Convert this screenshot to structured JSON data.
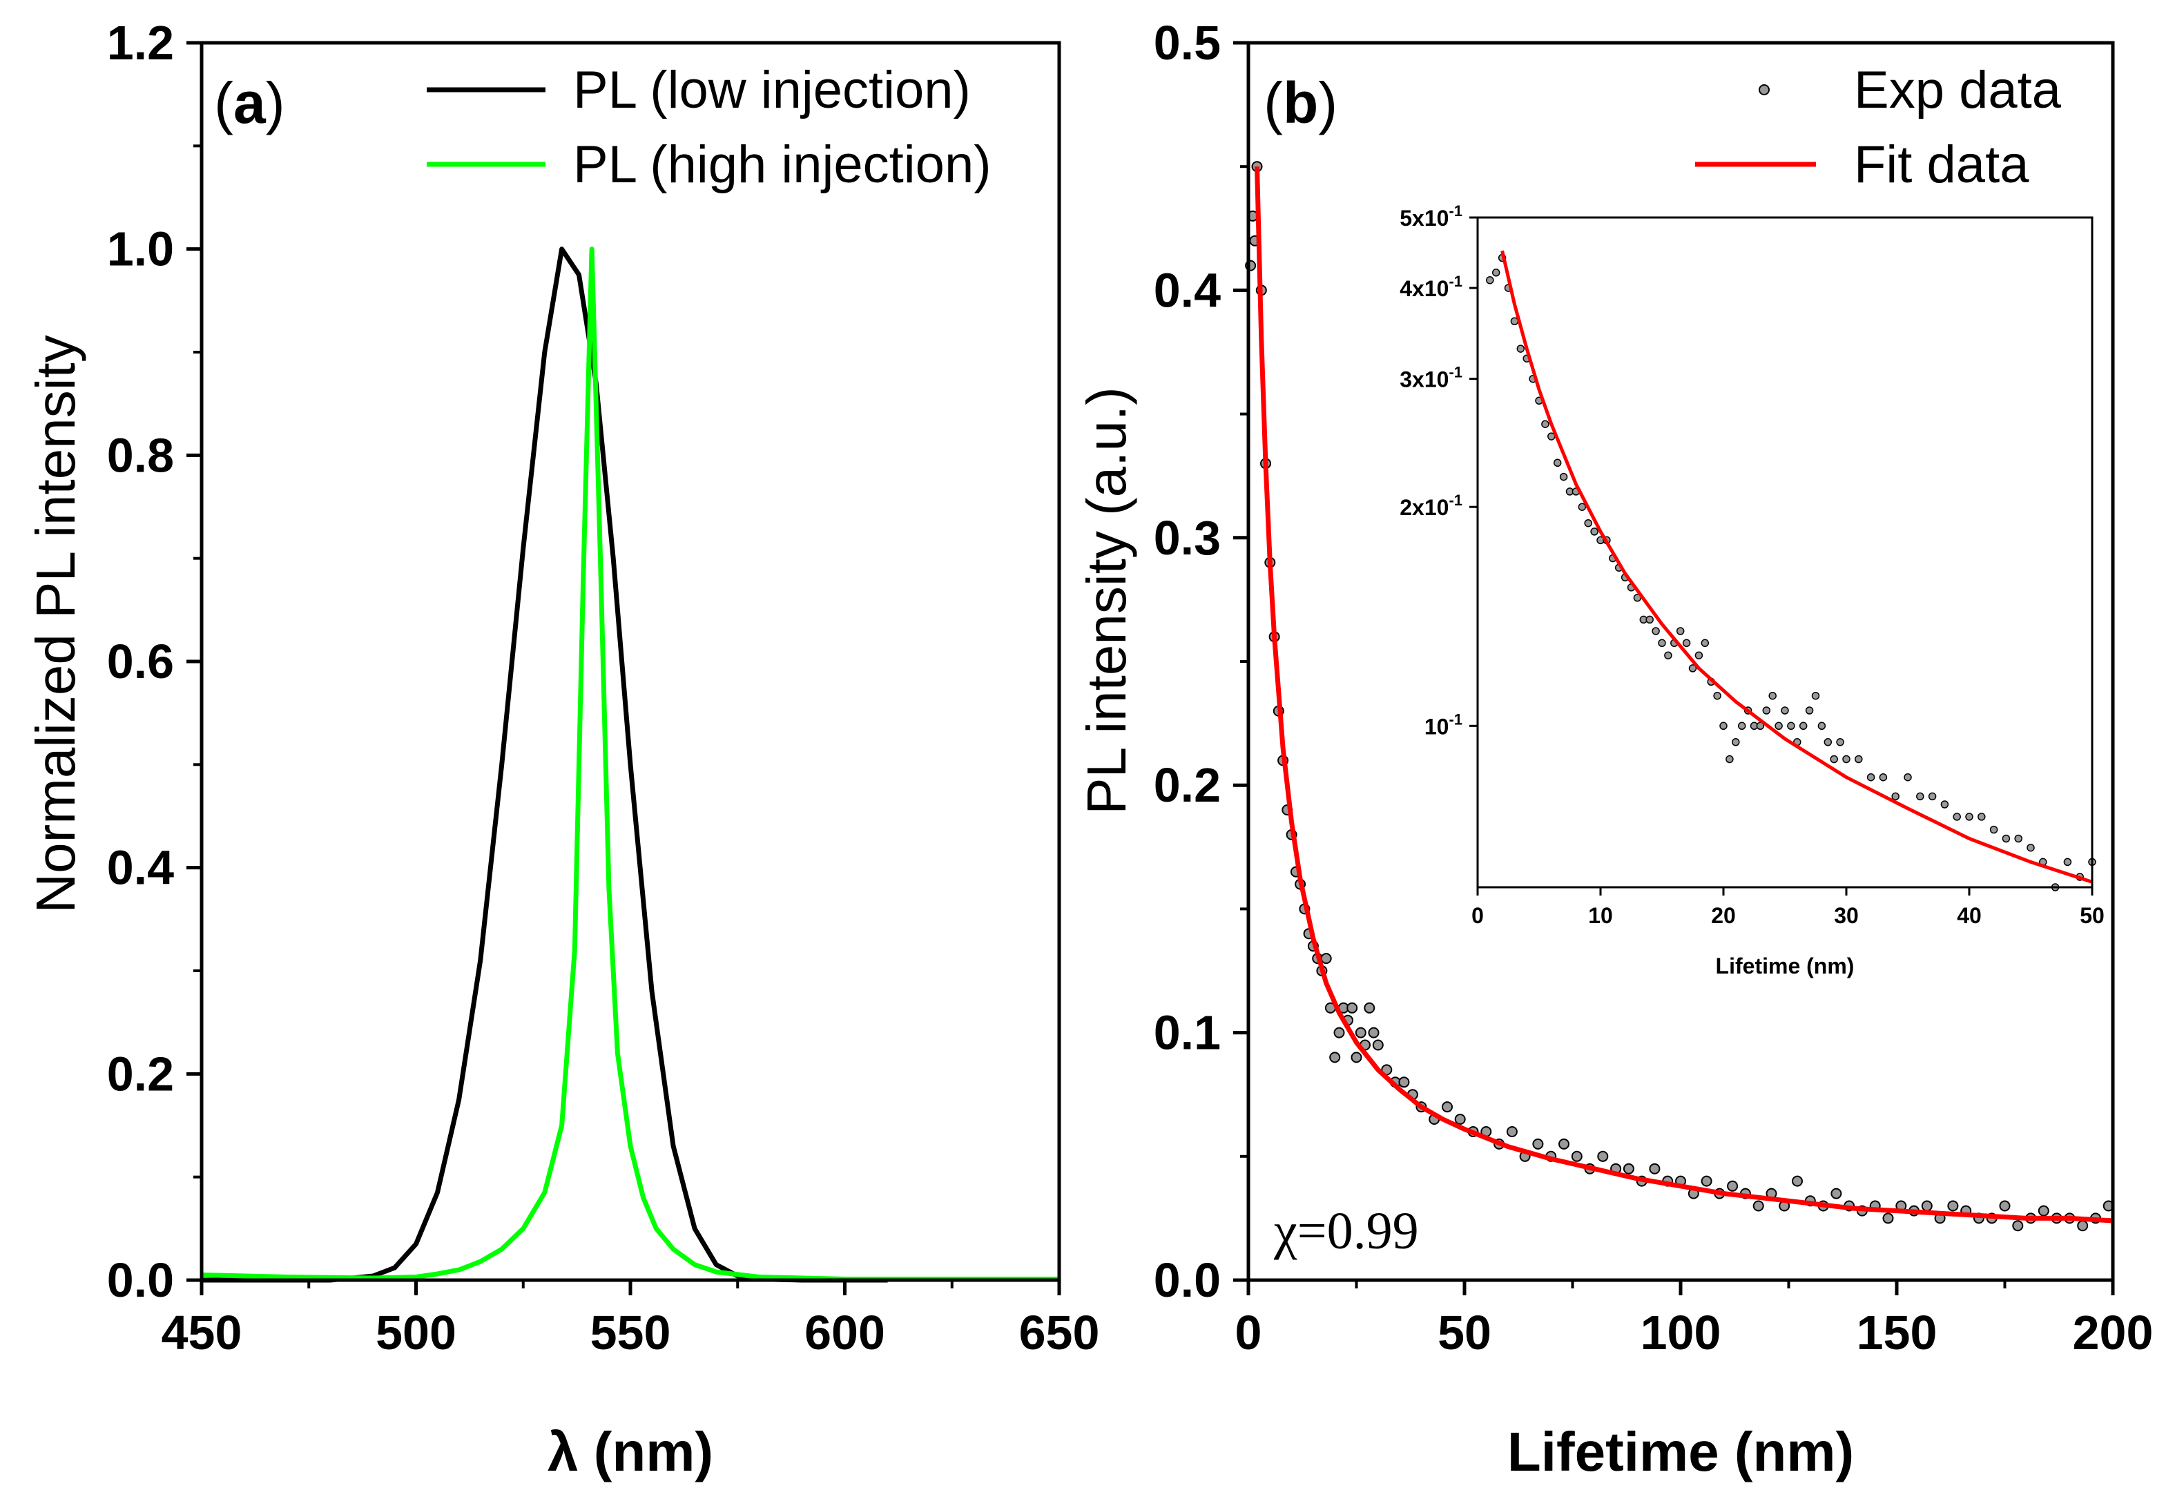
{
  "chart_data": [
    {
      "panel": "a",
      "panel_letter": "a",
      "type": "line",
      "xlabel": "λ (nm)",
      "ylabel": "Normalized  PL intensity",
      "xlim": [
        450,
        650
      ],
      "ylim": [
        0,
        1.2
      ],
      "xticks": [
        "450",
        "500",
        "550",
        "600",
        "650"
      ],
      "yticks": [
        "0.0",
        "0.2",
        "0.4",
        "0.6",
        "0.8",
        "1.0",
        "1.2"
      ],
      "legend_position": "top-right",
      "series": [
        {
          "name": "PL (low injection)",
          "color": "#000000",
          "x": [
            450,
            480,
            490,
            495,
            500,
            505,
            510,
            515,
            520,
            525,
            530,
            534,
            538,
            542,
            546,
            550,
            555,
            560,
            565,
            570,
            575,
            580,
            590,
            600,
            610
          ],
          "values": [
            0.0,
            0.0,
            0.004,
            0.012,
            0.035,
            0.085,
            0.175,
            0.31,
            0.5,
            0.71,
            0.9,
            1.0,
            0.975,
            0.87,
            0.7,
            0.5,
            0.28,
            0.13,
            0.05,
            0.015,
            0.004,
            0.001,
            0.0,
            0.0,
            0.0
          ]
        },
        {
          "name": "PL (high injection)",
          "color": "#00ff00",
          "x": [
            450,
            470,
            490,
            500,
            505,
            510,
            515,
            520,
            525,
            530,
            534,
            537,
            539,
            541,
            543,
            545,
            547,
            550,
            553,
            556,
            560,
            565,
            570,
            580,
            600,
            650
          ],
          "values": [
            0.005,
            0.003,
            0.002,
            0.003,
            0.006,
            0.01,
            0.018,
            0.03,
            0.05,
            0.085,
            0.15,
            0.32,
            0.68,
            1.0,
            0.7,
            0.38,
            0.22,
            0.13,
            0.08,
            0.05,
            0.03,
            0.015,
            0.008,
            0.003,
            0.001,
            0.001
          ]
        }
      ]
    },
    {
      "panel": "b",
      "panel_letter": "b",
      "type": "scatter",
      "xlabel": "Lifetime (nm)",
      "ylabel": "PL intensity (a.u.)",
      "xlim": [
        0,
        200
      ],
      "ylim": [
        0,
        0.5
      ],
      "xticks": [
        "0",
        "50",
        "100",
        "150",
        "200"
      ],
      "yticks": [
        "0.0",
        "0.1",
        "0.2",
        "0.3",
        "0.4",
        "0.5"
      ],
      "legend_position": "top-right",
      "annotation": "χ=0.99",
      "series": [
        {
          "name": "Exp data",
          "color": "#000000",
          "x": [
            0.5,
            1,
            1.5,
            2,
            3,
            4,
            5,
            6,
            7,
            8,
            9,
            10,
            11,
            12,
            13,
            14,
            15,
            16,
            17,
            18,
            19,
            20,
            21,
            22,
            23,
            24,
            25,
            26,
            27,
            28,
            29,
            30,
            32,
            34,
            36,
            38,
            40,
            43,
            46,
            49,
            52,
            55,
            58,
            61,
            64,
            67,
            70,
            73,
            76,
            79,
            82,
            85,
            88,
            91,
            94,
            97,
            100,
            103,
            106,
            109,
            112,
            115,
            118,
            121,
            124,
            127,
            130,
            133,
            136,
            139,
            142,
            145,
            148,
            151,
            154,
            157,
            160,
            163,
            166,
            169,
            172,
            175,
            178,
            181,
            184,
            187,
            190,
            193,
            196,
            199
          ],
          "values": [
            0.41,
            0.43,
            0.42,
            0.45,
            0.4,
            0.33,
            0.29,
            0.26,
            0.23,
            0.21,
            0.19,
            0.18,
            0.165,
            0.16,
            0.15,
            0.14,
            0.135,
            0.13,
            0.125,
            0.13,
            0.11,
            0.09,
            0.1,
            0.11,
            0.105,
            0.11,
            0.09,
            0.1,
            0.095,
            0.11,
            0.1,
            0.095,
            0.085,
            0.08,
            0.08,
            0.075,
            0.07,
            0.065,
            0.07,
            0.065,
            0.06,
            0.06,
            0.055,
            0.06,
            0.05,
            0.055,
            0.05,
            0.055,
            0.05,
            0.045,
            0.05,
            0.045,
            0.045,
            0.04,
            0.045,
            0.04,
            0.04,
            0.035,
            0.04,
            0.035,
            0.038,
            0.035,
            0.03,
            0.035,
            0.03,
            0.04,
            0.032,
            0.03,
            0.035,
            0.03,
            0.028,
            0.03,
            0.025,
            0.03,
            0.028,
            0.03,
            0.025,
            0.03,
            0.028,
            0.025,
            0.025,
            0.03,
            0.022,
            0.025,
            0.028,
            0.025,
            0.025,
            0.022,
            0.025,
            0.03
          ]
        },
        {
          "name": "Fit data",
          "color": "#ff0000",
          "x": [
            2,
            3,
            4,
            5,
            6,
            8,
            10,
            12,
            15,
            18,
            21,
            25,
            30,
            35,
            40,
            45,
            50,
            60,
            70,
            80,
            90,
            100,
            110,
            120,
            130,
            140,
            150,
            160,
            170,
            180,
            190,
            200
          ],
          "values": [
            0.45,
            0.38,
            0.33,
            0.29,
            0.26,
            0.215,
            0.185,
            0.162,
            0.138,
            0.12,
            0.108,
            0.096,
            0.085,
            0.077,
            0.07,
            0.065,
            0.061,
            0.054,
            0.049,
            0.045,
            0.041,
            0.038,
            0.035,
            0.033,
            0.031,
            0.029,
            0.028,
            0.027,
            0.026,
            0.025,
            0.025,
            0.024
          ]
        }
      ]
    },
    {
      "panel": "b-inset",
      "type": "scatter",
      "yscale": "log",
      "xlabel": "Lifetime (nm)",
      "ylabel": "",
      "xlim": [
        0,
        50
      ],
      "ylim": [
        0.06,
        0.5
      ],
      "xticks": [
        "0",
        "10",
        "20",
        "30",
        "40",
        "50"
      ],
      "yticks": [
        {
          "value": 0.1,
          "base": "10",
          "exp": "-1"
        },
        {
          "value": 0.2,
          "base": "2x10",
          "exp": "-1"
        },
        {
          "value": 0.3,
          "base": "3x10",
          "exp": "-1"
        },
        {
          "value": 0.4,
          "base": "4x10",
          "exp": "-1"
        },
        {
          "value": 0.5,
          "base": "5x10",
          "exp": "-1"
        }
      ],
      "series": [
        {
          "name": "Exp data",
          "color": "#000000",
          "x": [
            1,
            1.5,
            2,
            2.5,
            3,
            3.5,
            4,
            4.5,
            5,
            5.5,
            6,
            6.5,
            7,
            7.5,
            8,
            8.5,
            9,
            9.5,
            10,
            10.5,
            11,
            11.5,
            12,
            12.5,
            13,
            13.5,
            14,
            14.5,
            15,
            15.5,
            16,
            16.5,
            17,
            17.5,
            18,
            18.5,
            19,
            19.5,
            20,
            20.5,
            21,
            21.5,
            22,
            22.5,
            23,
            23.5,
            24,
            24.5,
            25,
            25.5,
            26,
            26.5,
            27,
            27.5,
            28,
            28.5,
            29,
            29.5,
            30,
            31,
            32,
            33,
            34,
            35,
            36,
            37,
            38,
            39,
            40,
            41,
            42,
            43,
            44,
            45,
            46,
            47,
            48,
            49,
            50
          ],
          "values": [
            0.41,
            0.42,
            0.44,
            0.4,
            0.36,
            0.33,
            0.32,
            0.3,
            0.28,
            0.26,
            0.25,
            0.23,
            0.22,
            0.21,
            0.21,
            0.2,
            0.19,
            0.185,
            0.18,
            0.18,
            0.17,
            0.165,
            0.16,
            0.155,
            0.15,
            0.14,
            0.14,
            0.135,
            0.13,
            0.125,
            0.13,
            0.135,
            0.13,
            0.12,
            0.125,
            0.13,
            0.115,
            0.11,
            0.1,
            0.09,
            0.095,
            0.1,
            0.105,
            0.1,
            0.1,
            0.105,
            0.11,
            0.1,
            0.105,
            0.1,
            0.095,
            0.1,
            0.105,
            0.11,
            0.1,
            0.095,
            0.09,
            0.095,
            0.09,
            0.09,
            0.085,
            0.085,
            0.08,
            0.085,
            0.08,
            0.08,
            0.078,
            0.075,
            0.075,
            0.075,
            0.072,
            0.07,
            0.07,
            0.068,
            0.065,
            0.06,
            0.065,
            0.062,
            0.065
          ]
        },
        {
          "name": "Fit data",
          "color": "#ff0000",
          "x": [
            2,
            3,
            4,
            5,
            6,
            8,
            10,
            12,
            15,
            18,
            21,
            25,
            30,
            35,
            40,
            45,
            50
          ],
          "values": [
            0.45,
            0.38,
            0.33,
            0.29,
            0.26,
            0.215,
            0.185,
            0.162,
            0.138,
            0.12,
            0.108,
            0.096,
            0.085,
            0.077,
            0.07,
            0.065,
            0.061
          ]
        }
      ]
    }
  ]
}
